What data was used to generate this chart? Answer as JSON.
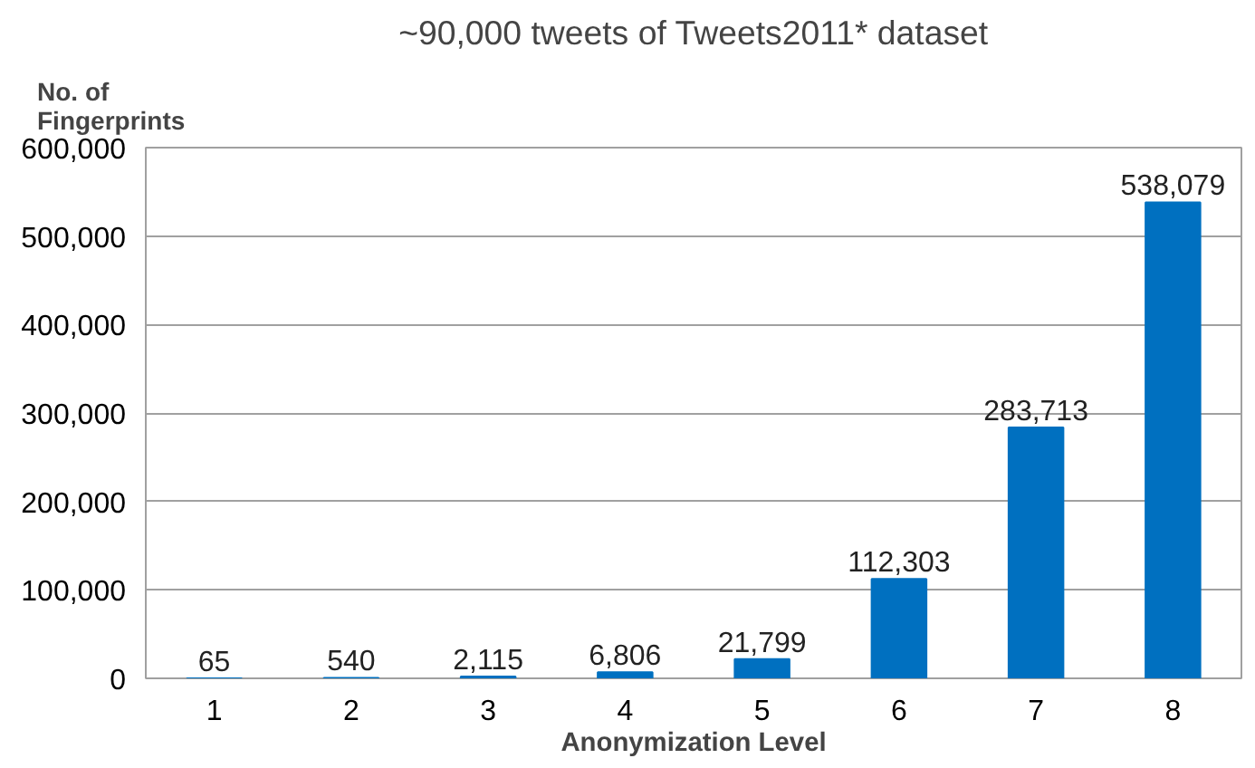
{
  "chart_data": {
    "type": "bar",
    "title": "~90,000 tweets of Tweets2011* dataset",
    "xlabel": "Anonymization Level",
    "ylabel": "No. of\nFingerprints",
    "categories": [
      "1",
      "2",
      "3",
      "4",
      "5",
      "6",
      "7",
      "8"
    ],
    "values": [
      65,
      540,
      2115,
      6806,
      21799,
      112303,
      283713,
      538079
    ],
    "color": "#0070c0",
    "value_labels": [
      "65",
      "540",
      "2,115",
      "6,806",
      "21,799",
      "112,303",
      "283,713",
      "538,079"
    ],
    "ylim": [
      0,
      600000
    ],
    "yticks": [
      {
        "value": 0,
        "label": "0"
      },
      {
        "value": 100000,
        "label": "100,000"
      },
      {
        "value": 200000,
        "label": "200,000"
      },
      {
        "value": 300000,
        "label": "300,000"
      },
      {
        "value": 400000,
        "label": "400,000"
      },
      {
        "value": 500000,
        "label": "500,000"
      },
      {
        "value": 600000,
        "label": "600,000"
      }
    ],
    "grid": "y"
  }
}
